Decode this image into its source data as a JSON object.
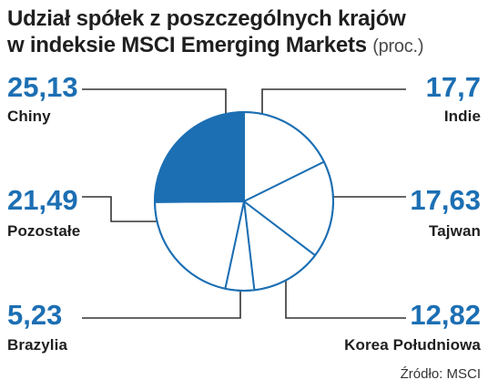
{
  "header": {
    "title_line1": "Udział spółek z poszczególnych krajów",
    "title_line2": "w indeksie MSCI Emerging Markets",
    "title_unit": "(proc.)"
  },
  "labels": [
    {
      "value": "25,13",
      "name": "Chiny"
    },
    {
      "value": "17,7",
      "name": "Indie"
    },
    {
      "value": "17,63",
      "name": "Tajwan"
    },
    {
      "value": "12,82",
      "name": "Korea Południowa"
    },
    {
      "value": "5,23",
      "name": "Brazylia"
    },
    {
      "value": "21,49",
      "name": "Pozostałe"
    }
  ],
  "source": "Źródło: MSCI",
  "chart_data": {
    "type": "pie",
    "title": "Udział spółek z poszczególnych krajów w indeksie MSCI Emerging Markets",
    "unit": "(proc.)",
    "categories": [
      "Chiny",
      "Indie",
      "Tajwan",
      "Korea Południowa",
      "Brazylia",
      "Pozostałe"
    ],
    "values": [
      25.13,
      17.7,
      17.63,
      12.82,
      5.23,
      21.49
    ],
    "colors": [
      "#1c6fb3",
      "#ffffff",
      "#ffffff",
      "#ffffff",
      "#ffffff",
      "#ffffff"
    ],
    "stroke_color": "#1c6fb3",
    "leader_color": "#333333"
  }
}
